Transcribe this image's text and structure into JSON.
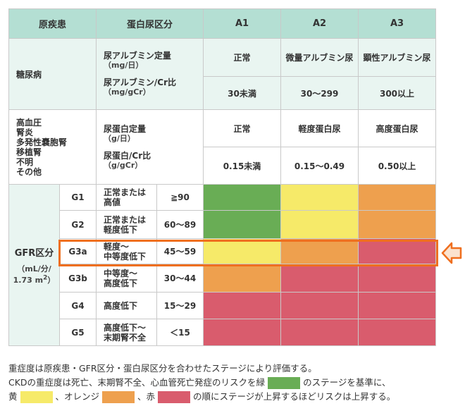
{
  "header": {
    "col1": "原疾患",
    "col2": "蛋白尿区分",
    "a1": "A1",
    "a2": "A2",
    "a3": "A3"
  },
  "diabetes": {
    "disease": "糖尿病",
    "measure1": "尿アルブミン定量",
    "unit1": "（mg/日）",
    "measure2": "尿アルブミン/Cr比",
    "unit2": "（mg/gCr）",
    "cat1": "正常",
    "cat2": "微量アルブミン尿",
    "cat3": "顕性アルブミン尿",
    "val1": "30未満",
    "val2": "30〜299",
    "val3": "300以上"
  },
  "other": {
    "diseases": [
      "高血圧",
      "腎炎",
      "多発性嚢胞腎",
      "移植腎",
      "不明",
      "その他"
    ],
    "measure1": "尿蛋白定量",
    "unit1": "（g/日）",
    "measure2": "尿蛋白/Cr比",
    "unit2": "（g/gCr）",
    "cat1": "正常",
    "cat2": "軽度蛋白尿",
    "cat3": "高度蛋白尿",
    "val1": "0.15未満",
    "val2": "0.15〜0.49",
    "val3": "0.50以上"
  },
  "gfr": {
    "label": "GFR区分",
    "unit_line1": "（mL/分/",
    "unit_line2": "1.73 m",
    "unit_sup": "2",
    "unit_close": "）",
    "rows": [
      {
        "stage": "G1",
        "desc1": "正常または",
        "desc2": "高値",
        "range": "≧90",
        "colors": [
          "green",
          "yellow",
          "orange"
        ]
      },
      {
        "stage": "G2",
        "desc1": "正常または",
        "desc2": "軽度低下",
        "range": "60〜89",
        "colors": [
          "green",
          "yellow",
          "orange"
        ]
      },
      {
        "stage": "G3a",
        "desc1": "軽度〜",
        "desc2": "中等度低下",
        "range": "45〜59",
        "colors": [
          "yellow",
          "orange",
          "red"
        ]
      },
      {
        "stage": "G3b",
        "desc1": "中等度〜",
        "desc2": "高度低下",
        "range": "30〜44",
        "colors": [
          "orange",
          "red",
          "red"
        ]
      },
      {
        "stage": "G4",
        "desc1": "高度低下",
        "desc2": "",
        "range": "15〜29",
        "colors": [
          "red",
          "red",
          "red"
        ]
      },
      {
        "stage": "G5",
        "desc1": "高度低下〜",
        "desc2": "末期腎不全",
        "range": "＜15",
        "colors": [
          "red",
          "red",
          "red"
        ]
      }
    ]
  },
  "colors": {
    "green": "#69ad55",
    "yellow": "#f6ea69",
    "orange": "#eea04e",
    "red": "#d95c6d",
    "highlight": "#ef6f1f",
    "header_bg": "#b4dfd3"
  },
  "notes": {
    "line1": "重症度は原疾患・GFR区分・蛋白尿区分を合わせたステージにより評価する。",
    "line2a": "CKDの重症度は死亡、末期腎不全、心血管死亡発症のリスクを緑",
    "line2b": "のステージを基準に、",
    "line3a": "黄",
    "line3b": "、オレンジ",
    "line3c": "、赤",
    "line3d": "の順にステージが上昇するほどリスクは上昇する。"
  },
  "icons": {
    "pointer": "arrow-left-icon"
  }
}
